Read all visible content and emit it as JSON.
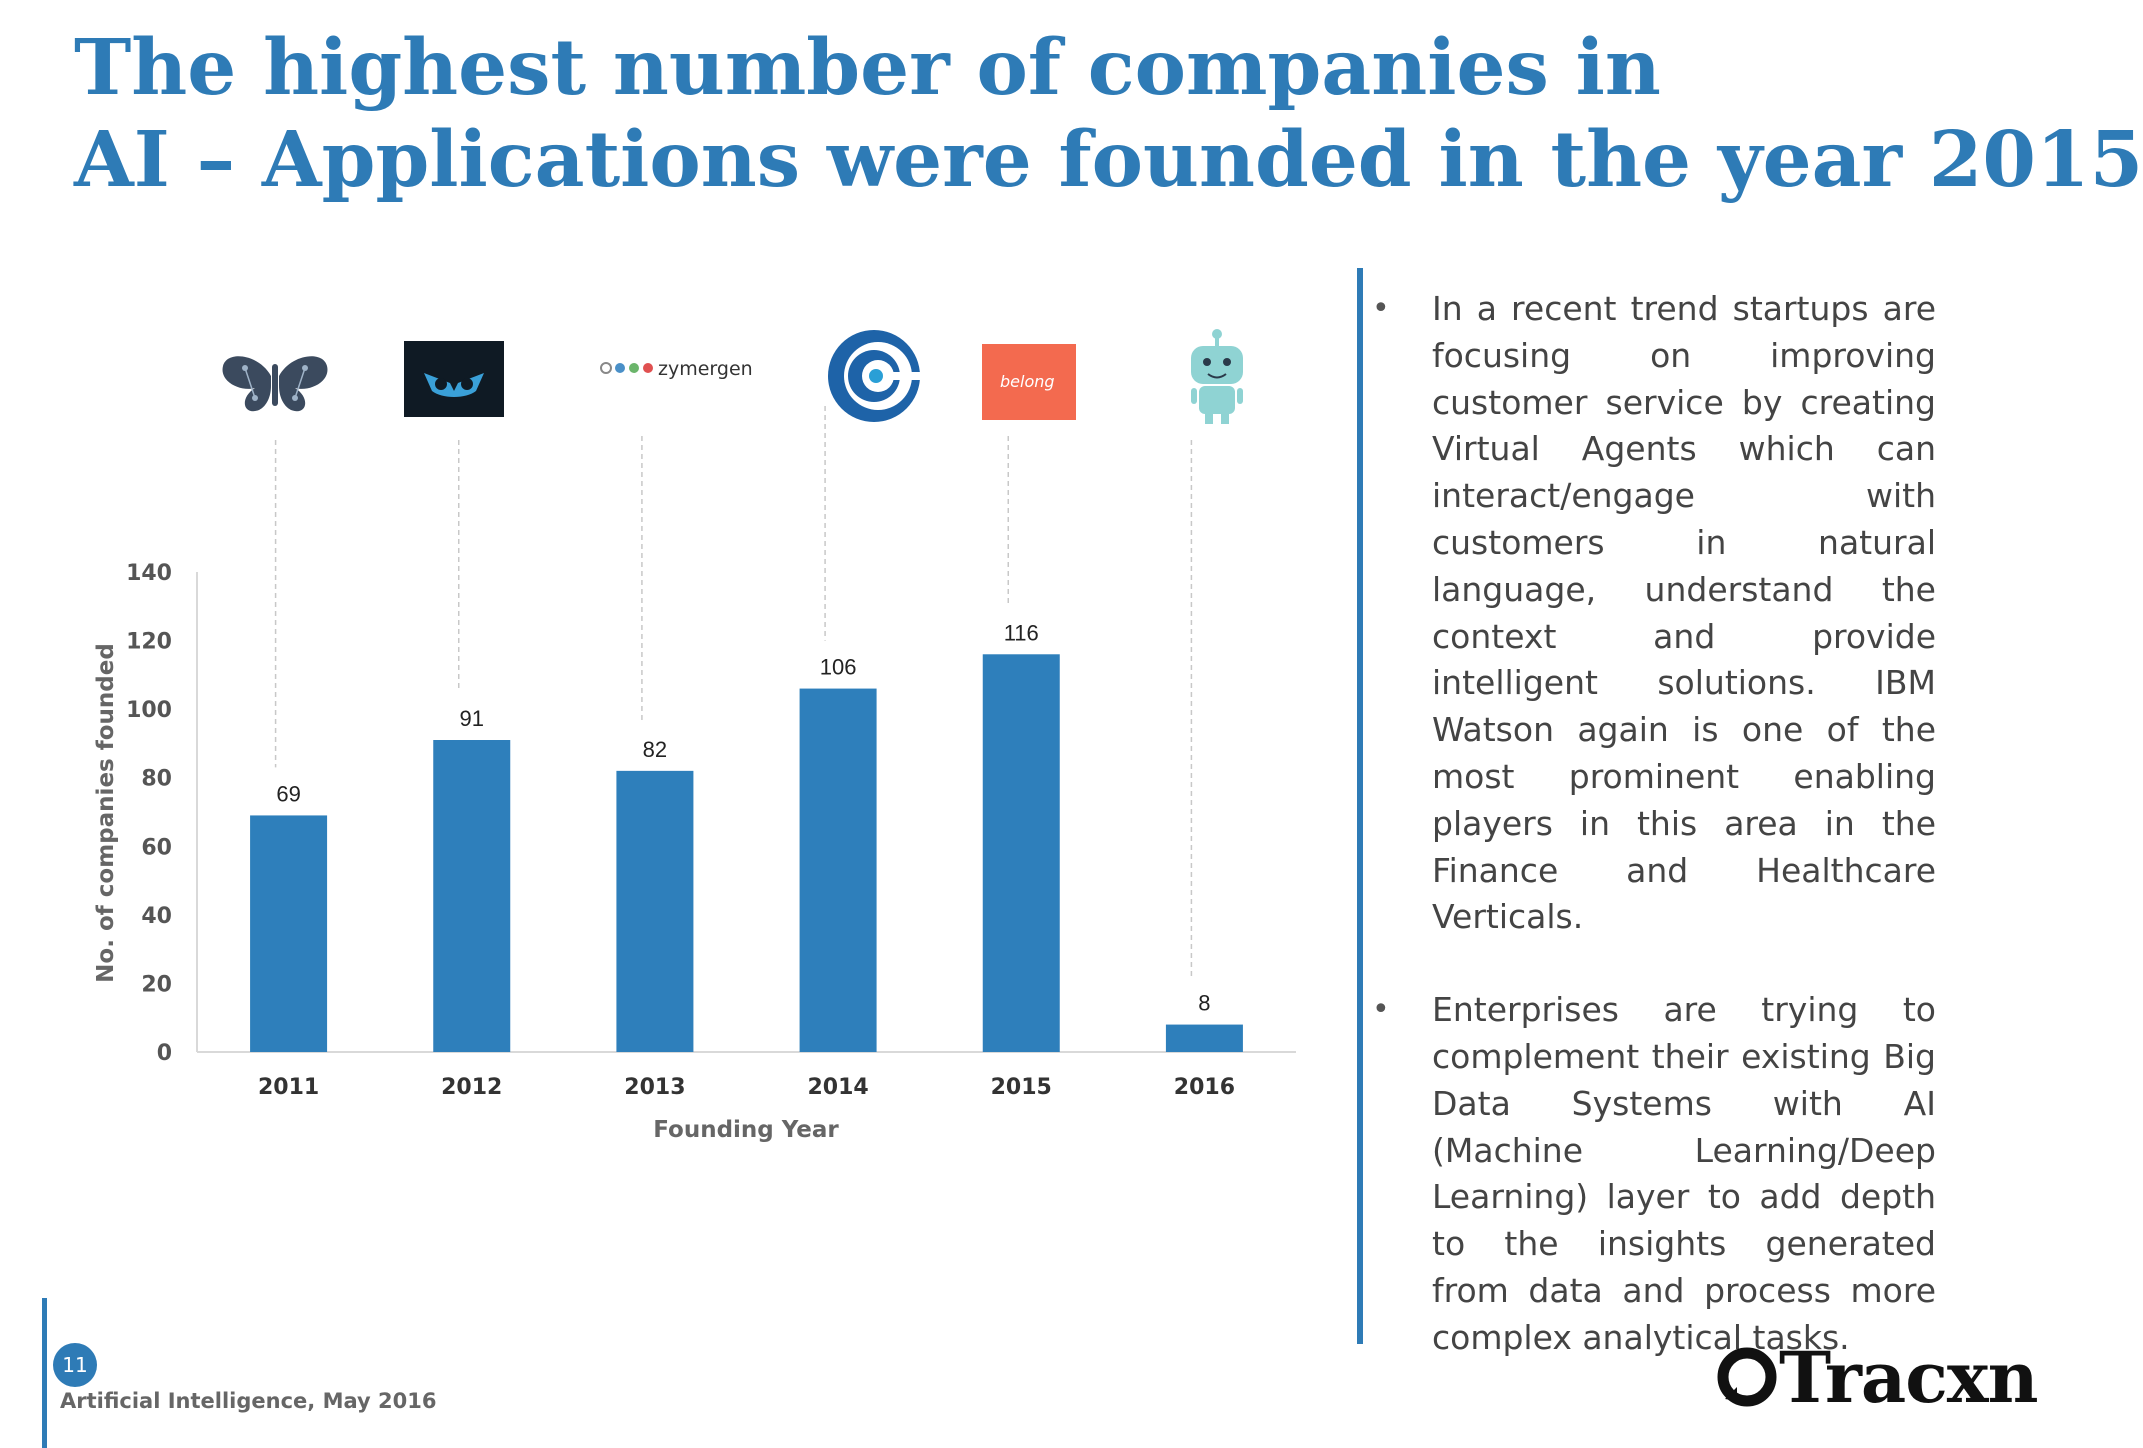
{
  "title": {
    "line1": "The highest number of companies  in",
    "line2": "AI – Applications were founded in the year 2015"
  },
  "chart_data": {
    "type": "bar",
    "categories": [
      "2011",
      "2012",
      "2013",
      "2014",
      "2015",
      "2016"
    ],
    "values": [
      69,
      91,
      82,
      106,
      116,
      8
    ],
    "xlabel": "Founding Year",
    "ylabel": "No. of companies founded",
    "ylim": [
      0,
      140
    ],
    "yticks": [
      0,
      20,
      40,
      60,
      80,
      100,
      120,
      140
    ],
    "grid": false,
    "data_labels": true,
    "bar_color": "#2e7fbb",
    "annotations": [
      {
        "category": "2011",
        "logo": "butterfly-logo-icon"
      },
      {
        "category": "2012",
        "logo": "owl-logo-icon"
      },
      {
        "category": "2013",
        "logo": "zymergen-logo",
        "text": "zymergen"
      },
      {
        "category": "2014",
        "logo": "swirl-e-logo-icon"
      },
      {
        "category": "2015",
        "logo": "belong-logo",
        "text": "belong"
      },
      {
        "category": "2016",
        "logo": "robot-logo-icon"
      }
    ]
  },
  "bullets": [
    "In a recent trend startups are focusing on improving customer service by creating Virtual Agents which can interact/engage with customers in natural language, understand the context and provide intelligent solutions. IBM Watson again is one of the most prominent enabling players in this area in the Finance and Healthcare Verticals.",
    "Enterprises are trying to complement their existing Big Data Systems with AI (Machine Learning/Deep Learning) layer to add depth to the insights generated from data and process more complex analytical tasks."
  ],
  "footer": {
    "page_number": "11",
    "text": "Artificial Intelligence, May 2016",
    "brand": "Tracxn"
  },
  "colors": {
    "accent": "#2e7bb6",
    "bars": "#2e7fbb"
  }
}
